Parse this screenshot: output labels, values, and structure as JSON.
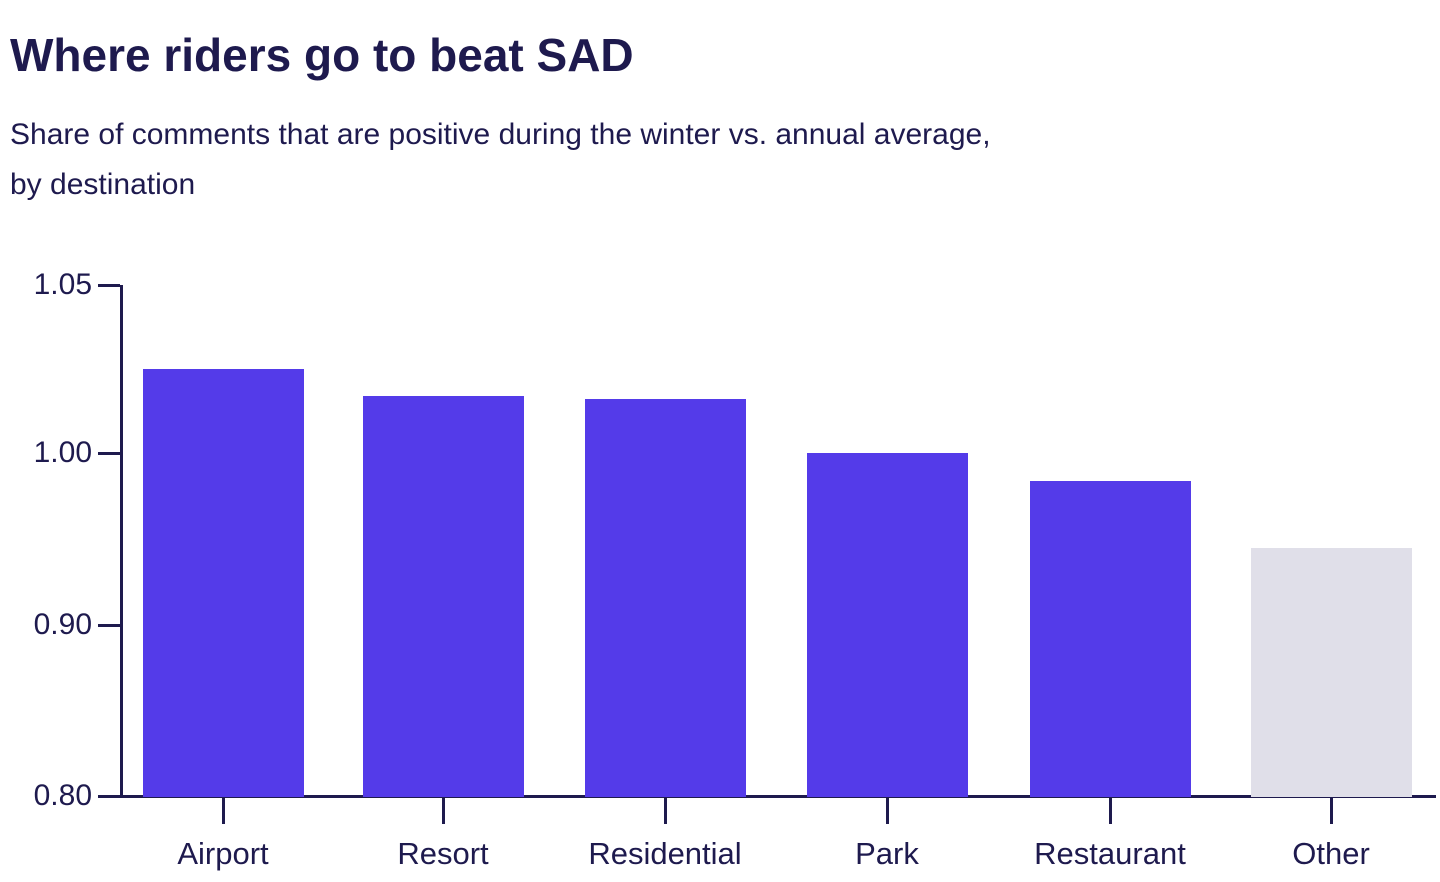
{
  "title": "Where riders go to beat SAD",
  "subtitle": "Share of comments that are positive during the winter vs. annual average,\nby destination",
  "colors": {
    "bar_primary": "#543BE9",
    "bar_muted": "#E0DFE9",
    "text": "#1E1A4E",
    "axis": "#1E1A4E",
    "background": "#FFFFFF"
  },
  "chart_data": {
    "type": "bar",
    "title": "Where riders go to beat SAD",
    "subtitle": "Share of comments that are positive during the winter vs. annual average, by destination",
    "categories": [
      "Airport",
      "Resort",
      "Residential",
      "Park",
      "Restaurant",
      "Other"
    ],
    "values": [
      1.025,
      1.017,
      1.016,
      1.0,
      0.984,
      0.945
    ],
    "bar_colors": [
      "primary",
      "primary",
      "primary",
      "primary",
      "primary",
      "muted"
    ],
    "xlabel": "",
    "ylabel": "",
    "y_ticks": [
      1.05,
      1.0,
      0.9,
      0.8
    ],
    "y_tick_labels": [
      "1.05",
      "1.00",
      "0.90",
      "0.80"
    ],
    "ylim": [
      0.8,
      1.05
    ],
    "grid": false,
    "legend": false,
    "layout_hints": {
      "tick_spacing": "equal spacing between labeled ticks (non-linear value scale as rendered)",
      "baseline_value": 0.8
    }
  }
}
